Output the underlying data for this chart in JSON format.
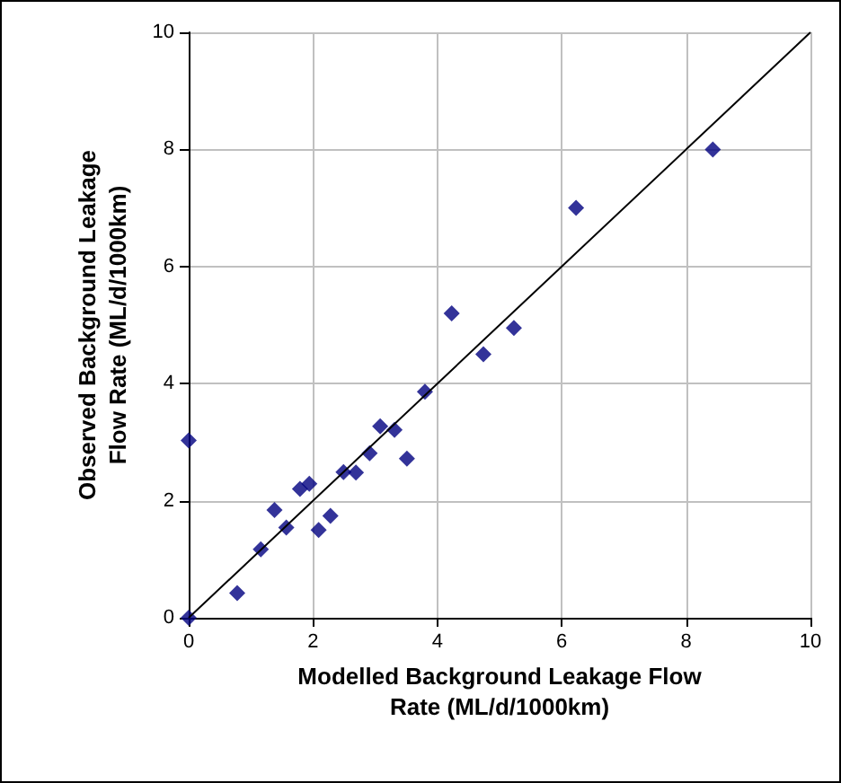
{
  "chart_data": {
    "type": "scatter",
    "xlabel": "Modelled Background Leakage Flow\nRate (ML/d/1000km)",
    "ylabel": "Observed Background Leakage\nFlow Rate (ML/d/1000km)",
    "xlim": [
      0,
      10
    ],
    "xticks": [
      0,
      2,
      4,
      6,
      8,
      10
    ],
    "ylim": [
      0,
      10
    ],
    "yticks": [
      0,
      2,
      4,
      6,
      8,
      10
    ],
    "grid": true,
    "marker": "diamond",
    "series": [
      {
        "color": "#000080",
        "x": [
          0,
          0,
          0.78,
          1.16,
          1.38,
          1.57,
          1.79,
          1.94,
          2.09,
          2.28,
          2.49,
          2.69,
          2.91,
          3.08,
          3.31,
          3.51,
          3.8,
          4.23,
          4.74,
          5.23,
          6.23,
          8.43
        ],
        "values": [
          0,
          3.03,
          0.42,
          1.17,
          1.84,
          1.54,
          2.2,
          2.29,
          1.5,
          1.74,
          2.49,
          2.48,
          2.81,
          3.27,
          3.21,
          2.72,
          3.86,
          5.2,
          4.5,
          4.95,
          7.0,
          8.0
        ]
      },
      {
        "type": "line",
        "color": "#000000",
        "marker": "none",
        "line_style": "solid",
        "x": [
          0,
          10
        ],
        "values": [
          0,
          10
        ]
      }
    ]
  }
}
